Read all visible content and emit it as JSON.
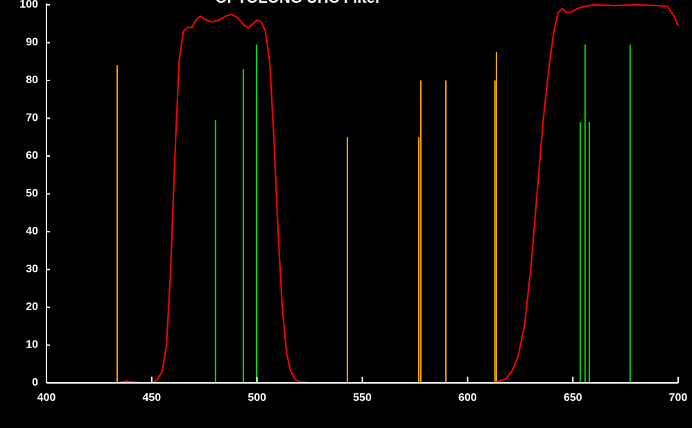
{
  "chart_data": {
    "type": "line",
    "title": "OPTOLONG UHC Filter",
    "xlim": [
      400,
      700
    ],
    "xticks": [
      400,
      450,
      500,
      550,
      600,
      650,
      700
    ],
    "ylim": [
      0,
      100
    ],
    "yticks": [
      0,
      10,
      20,
      30,
      40,
      50,
      60,
      70,
      80,
      90,
      100
    ],
    "series": [
      {
        "type": "line",
        "color": "#ff0000",
        "x": [
          434,
          438,
          440,
          445,
          450,
          452,
          455,
          457,
          459,
          461,
          463,
          465,
          467,
          469,
          471,
          473,
          476,
          479,
          482,
          485,
          488,
          491,
          494,
          496,
          498,
          500,
          502,
          504,
          506,
          508,
          510,
          512,
          514,
          516,
          518,
          520,
          525,
          600,
          612,
          615,
          618,
          621,
          624,
          627,
          630,
          633,
          636,
          639,
          641,
          643,
          645,
          647,
          649,
          652,
          655,
          660,
          670,
          680,
          690,
          695,
          698,
          700
        ],
        "values": [
          0,
          0.5,
          0.3,
          0,
          0,
          0.5,
          3,
          10,
          30,
          60,
          85,
          93,
          94,
          94,
          96,
          97,
          96,
          95.5,
          96,
          97,
          97.5,
          96.5,
          94.5,
          94,
          95,
          96,
          95.5,
          93,
          85,
          65,
          40,
          20,
          8,
          3,
          1,
          0.3,
          0,
          0,
          0,
          0.5,
          1,
          3,
          7,
          15,
          30,
          50,
          70,
          85,
          93,
          98,
          99,
          98,
          98,
          99,
          99.5,
          100,
          99.8,
          100,
          99.8,
          99.6,
          97,
          94.5
        ]
      },
      {
        "type": "stem",
        "color": "#ffa500",
        "x": [
          433.6,
          542.9,
          576.8,
          577.8,
          589.7,
          613,
          613.7
        ],
        "values": [
          84,
          65,
          65,
          80,
          80,
          80,
          87.5
        ]
      },
      {
        "type": "stem",
        "color": "#00e000",
        "x": [
          480.3,
          493.5,
          499.8,
          653.5,
          655.8,
          657.8,
          677.2
        ],
        "values": [
          69.5,
          83,
          89.5,
          69,
          89.5,
          69,
          89.5
        ]
      }
    ]
  }
}
